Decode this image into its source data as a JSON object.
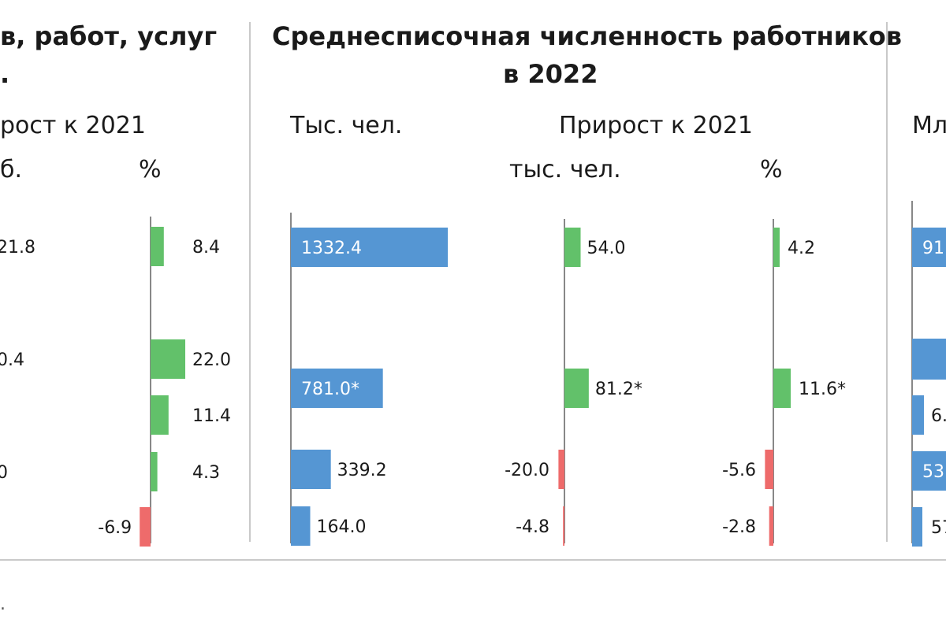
{
  "colors": {
    "positive": "#62c16a",
    "negative": "#ee6b6b",
    "primary": "#5596d3",
    "label_on_bar": "#ffffff"
  },
  "left_panel": {
    "title_line1": "в, работ, услуг",
    "title_line2": ".",
    "header_prirost": "рост к 2021",
    "header_unit": "б.",
    "header_percent": "%",
    "value_fragments": [
      "21.8",
      "0.4",
      "0"
    ]
  },
  "middle_panel": {
    "title_line1": "Среднесписочная численность работников",
    "title_line2": "в 2022",
    "header_thousand": "Тыс. чел.",
    "header_prirost": "Прирост к 2021",
    "header_thousand_people": "тыс. чел.",
    "header_percent": "%"
  },
  "right_panel": {
    "header_fragment": "Мл",
    "value_fragments": [
      "91",
      "6.",
      "53",
      "57"
    ]
  },
  "footnote": ".",
  "chart_data": [
    {
      "type": "bar",
      "orientation": "horizontal",
      "panel": "left",
      "title": "",
      "series": [
        {
          "name": "%",
          "values": [
            8.4,
            22.0,
            11.4,
            4.3,
            -6.9
          ],
          "labels": [
            "8.4",
            "22.0",
            "11.4",
            "4.3",
            "-6.9"
          ]
        }
      ]
    },
    {
      "type": "bar",
      "orientation": "horizontal",
      "panel": "middle",
      "title": "Среднесписочная численность работников в 2022",
      "series": [
        {
          "name": "Тыс. чел.",
          "values": [
            1332.4,
            781.0,
            339.2,
            164.0
          ],
          "labels": [
            "1332.4",
            "781.0*",
            "339.2",
            "164.0"
          ]
        }
      ]
    },
    {
      "type": "bar",
      "orientation": "horizontal",
      "panel": "middle",
      "title": "Прирост к 2021",
      "series": [
        {
          "name": "тыс. чел.",
          "values": [
            54.0,
            81.2,
            -20.0,
            -4.8
          ],
          "labels": [
            "54.0",
            "81.2*",
            "-20.0",
            "-4.8"
          ]
        }
      ]
    },
    {
      "type": "bar",
      "orientation": "horizontal",
      "panel": "middle",
      "title": "Прирост к 2021",
      "series": [
        {
          "name": "%",
          "values": [
            4.2,
            11.6,
            -5.6,
            -2.8
          ],
          "labels": [
            "4.2",
            "11.6*",
            "-5.6",
            "-2.8"
          ]
        }
      ]
    }
  ]
}
